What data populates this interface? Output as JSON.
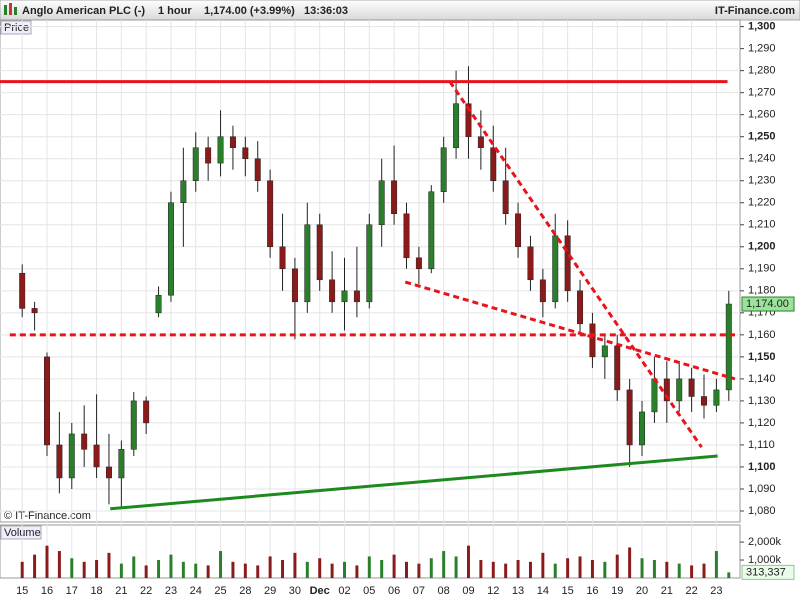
{
  "chart_data": {
    "type": "candlestick",
    "title": "Anglo American PLC (-)",
    "interval": "1 hour",
    "quote": "1,174.00 (+3.99%)",
    "time": "13:36:03",
    "source": "IT-Finance.com",
    "watermark": "© IT-Finance.com",
    "panel_label": "Price",
    "categories": [
      "15",
      null,
      "16",
      null,
      "17",
      null,
      "18",
      null,
      "21",
      null,
      "22",
      null,
      "23",
      null,
      "24",
      null,
      "25",
      null,
      "28",
      null,
      "29",
      null,
      "30",
      null,
      "Dec",
      null,
      "02",
      null,
      "05",
      null,
      "06",
      null,
      "07",
      null,
      "08",
      null,
      "09",
      null,
      "12",
      null,
      "13",
      null,
      "14",
      null,
      "15",
      null,
      "16",
      null,
      "19",
      null,
      "20",
      null,
      "21",
      null,
      "22",
      null,
      "23",
      null
    ],
    "open": [
      1188,
      1172,
      1150,
      1110,
      1095,
      1115,
      1110,
      1100,
      1095,
      1108,
      1130,
      1170,
      1178,
      1220,
      1230,
      1245,
      1238,
      1250,
      1245,
      1240,
      1230,
      1200,
      1190,
      1175,
      1210,
      1185,
      1175,
      1180,
      1175,
      1210,
      1230,
      1215,
      1195,
      1190,
      1225,
      1245,
      1265,
      1250,
      1245,
      1230,
      1215,
      1200,
      1185,
      1175,
      1205,
      1180,
      1165,
      1150,
      1155,
      1135,
      1110,
      1125,
      1140,
      1130,
      1140,
      1132,
      1128,
      1135
    ],
    "high": [
      1192,
      1175,
      1152,
      1125,
      1120,
      1128,
      1133,
      1115,
      1112,
      1134,
      1132,
      1182,
      1225,
      1245,
      1252,
      1250,
      1262,
      1255,
      1250,
      1248,
      1235,
      1215,
      1195,
      1220,
      1215,
      1198,
      1195,
      1200,
      1215,
      1240,
      1246,
      1220,
      1200,
      1228,
      1250,
      1280,
      1282,
      1262,
      1255,
      1245,
      1220,
      1205,
      1190,
      1215,
      1212,
      1185,
      1170,
      1160,
      1160,
      1140,
      1130,
      1150,
      1148,
      1148,
      1145,
      1142,
      1140,
      1180
    ],
    "low": [
      1168,
      1162,
      1105,
      1088,
      1090,
      1100,
      1095,
      1083,
      1082,
      1105,
      1115,
      1168,
      1175,
      1200,
      1225,
      1230,
      1232,
      1235,
      1232,
      1225,
      1195,
      1180,
      1158,
      1170,
      1180,
      1170,
      1162,
      1168,
      1172,
      1200,
      1210,
      1190,
      1183,
      1188,
      1220,
      1240,
      1240,
      1235,
      1225,
      1210,
      1195,
      1180,
      1168,
      1172,
      1175,
      1160,
      1145,
      1140,
      1130,
      1100,
      1105,
      1120,
      1120,
      1125,
      1125,
      1122,
      1125,
      1130
    ],
    "close": [
      1172,
      1170,
      1110,
      1095,
      1115,
      1108,
      1100,
      1095,
      1108,
      1130,
      1120,
      1178,
      1220,
      1230,
      1245,
      1238,
      1250,
      1245,
      1240,
      1230,
      1200,
      1190,
      1175,
      1210,
      1185,
      1175,
      1180,
      1175,
      1210,
      1230,
      1215,
      1195,
      1190,
      1225,
      1245,
      1265,
      1250,
      1245,
      1230,
      1215,
      1200,
      1185,
      1175,
      1205,
      1180,
      1165,
      1150,
      1155,
      1135,
      1110,
      1125,
      1140,
      1130,
      1140,
      1132,
      1128,
      1135,
      1174
    ],
    "up_color": "#2a7f2a",
    "down_color": "#8b1a1a",
    "ylim": [
      1075,
      1303
    ],
    "yticks": [
      {
        "value": 1080,
        "label": "1,080"
      },
      {
        "value": 1090,
        "label": "1,090"
      },
      {
        "value": 1100,
        "label": "1,100"
      },
      {
        "value": 1110,
        "label": "1,110"
      },
      {
        "value": 1120,
        "label": "1,120"
      },
      {
        "value": 1130,
        "label": "1,130"
      },
      {
        "value": 1140,
        "label": "1,140"
      },
      {
        "value": 1150,
        "label": "1,150"
      },
      {
        "value": 1160,
        "label": "1,160"
      },
      {
        "value": 1170,
        "label": "1,170"
      },
      {
        "value": 1180,
        "label": "1,180"
      },
      {
        "value": 1190,
        "label": "1,190"
      },
      {
        "value": 1200,
        "label": "1,200"
      },
      {
        "value": 1210,
        "label": "1,210"
      },
      {
        "value": 1220,
        "label": "1,220"
      },
      {
        "value": 1230,
        "label": "1,230"
      },
      {
        "value": 1240,
        "label": "1,240"
      },
      {
        "value": 1250,
        "label": "1,250"
      },
      {
        "value": 1260,
        "label": "1,260"
      },
      {
        "value": 1270,
        "label": "1,270"
      },
      {
        "value": 1280,
        "label": "1,280"
      },
      {
        "value": 1290,
        "label": "1,290"
      },
      {
        "value": 1300,
        "label": "1,300"
      }
    ],
    "grid": true,
    "last_price": {
      "value": 1174,
      "label": "1,174.00"
    },
    "lines": [
      {
        "x": [
          -1.8,
          56.9
        ],
        "y": [
          1275,
          1275
        ],
        "color": "#e8141b",
        "dashed": false
      },
      {
        "x": [
          -1.0,
          57.5
        ],
        "y": [
          1160,
          1160
        ],
        "color": "#e8141b",
        "dashed": true
      },
      {
        "x": [
          7.1,
          56.1
        ],
        "y": [
          1081,
          1105
        ],
        "color": "#1e8a1e",
        "dashed": false
      },
      {
        "x": [
          34.5,
          54.8
        ],
        "y": [
          1275,
          1109
        ],
        "color": "#e8141b",
        "dashed": true
      },
      {
        "x": [
          30.9,
          57.5
        ],
        "y": [
          1184,
          1140
        ],
        "color": "#e8141b",
        "dashed": true
      }
    ],
    "volume": {
      "label": "Volume",
      "values": [
        900000,
        1300000,
        1800000,
        1500000,
        1100000,
        900000,
        1000000,
        1400000,
        800000,
        1200000,
        700000,
        1000000,
        1300000,
        900000,
        800000,
        700000,
        1500000,
        900000,
        800000,
        700000,
        1200000,
        1000000,
        1400000,
        900000,
        1100000,
        800000,
        900000,
        700000,
        1200000,
        1000000,
        1300000,
        900000,
        800000,
        1100000,
        1500000,
        1200000,
        1800000,
        1000000,
        900000,
        800000,
        1000000,
        900000,
        1400000,
        800000,
        1100000,
        1200000,
        1000000,
        900000,
        1300000,
        1700000,
        1100000,
        1000000,
        900000,
        800000,
        700000,
        800000,
        1500000,
        313337
      ],
      "value_labels_last": "313,337",
      "ylim": [
        0,
        2950000
      ],
      "yticks": [
        {
          "value": 1000000,
          "label": "1,000k"
        },
        {
          "value": 2000000,
          "label": "2,000k"
        }
      ]
    }
  }
}
